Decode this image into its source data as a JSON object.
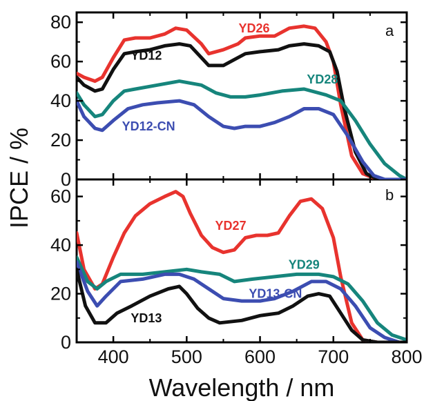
{
  "chart_data": {
    "type": "line",
    "xlabel": "Wavelength / nm",
    "ylabel": "IPCE / %",
    "xlim": [
      350,
      800
    ],
    "x_ticks": [
      "400",
      "500",
      "600",
      "700",
      "800"
    ],
    "grid": false,
    "panels": [
      {
        "label": "a",
        "ylim": [
          0,
          85
        ],
        "y_ticks": [
          "0",
          "20",
          "40",
          "60",
          "80"
        ],
        "series": [
          {
            "name": "YD26",
            "color": "#e8332e",
            "points": [
              [
                350,
                54
              ],
              [
                360,
                52
              ],
              [
                375,
                50
              ],
              [
                385,
                52
              ],
              [
                400,
                62
              ],
              [
                415,
                71
              ],
              [
                430,
                72
              ],
              [
                450,
                72
              ],
              [
                470,
                74
              ],
              [
                485,
                77
              ],
              [
                500,
                76
              ],
              [
                520,
                69
              ],
              [
                530,
                64
              ],
              [
                550,
                66
              ],
              [
                570,
                69
              ],
              [
                580,
                72
              ],
              [
                600,
                73
              ],
              [
                620,
                73
              ],
              [
                640,
                77
              ],
              [
                660,
                78
              ],
              [
                675,
                77
              ],
              [
                690,
                70
              ],
              [
                700,
                60
              ],
              [
                710,
                38
              ],
              [
                725,
                12
              ],
              [
                740,
                3
              ],
              [
                760,
                0
              ],
              [
                800,
                0
              ]
            ]
          },
          {
            "name": "YD12",
            "color": "#111111",
            "points": [
              [
                350,
                52
              ],
              [
                360,
                48
              ],
              [
                375,
                45
              ],
              [
                385,
                46
              ],
              [
                400,
                56
              ],
              [
                415,
                64
              ],
              [
                430,
                65
              ],
              [
                450,
                66
              ],
              [
                470,
                68
              ],
              [
                490,
                69
              ],
              [
                505,
                68
              ],
              [
                520,
                62
              ],
              [
                530,
                58
              ],
              [
                550,
                58
              ],
              [
                565,
                61
              ],
              [
                580,
                64
              ],
              [
                600,
                65
              ],
              [
                625,
                66
              ],
              [
                640,
                68
              ],
              [
                660,
                69
              ],
              [
                680,
                68
              ],
              [
                695,
                65
              ],
              [
                705,
                55
              ],
              [
                715,
                36
              ],
              [
                730,
                14
              ],
              [
                745,
                3
              ],
              [
                760,
                0
              ],
              [
                800,
                0
              ]
            ]
          },
          {
            "name": "YD28",
            "color": "#16857c",
            "points": [
              [
                350,
                44
              ],
              [
                360,
                38
              ],
              [
                375,
                32
              ],
              [
                385,
                33
              ],
              [
                400,
                40
              ],
              [
                415,
                45
              ],
              [
                430,
                46
              ],
              [
                460,
                48
              ],
              [
                490,
                50
              ],
              [
                520,
                48
              ],
              [
                540,
                44
              ],
              [
                560,
                42
              ],
              [
                580,
                42
              ],
              [
                600,
                43
              ],
              [
                630,
                45
              ],
              [
                660,
                46
              ],
              [
                690,
                43
              ],
              [
                710,
                40
              ],
              [
                730,
                30
              ],
              [
                750,
                18
              ],
              [
                770,
                8
              ],
              [
                790,
                2
              ],
              [
                800,
                0
              ]
            ]
          },
          {
            "name": "YD12-CN",
            "color": "#3c4db1",
            "points": [
              [
                350,
                40
              ],
              [
                360,
                32
              ],
              [
                375,
                26
              ],
              [
                385,
                25
              ],
              [
                400,
                30
              ],
              [
                420,
                36
              ],
              [
                440,
                38
              ],
              [
                460,
                39
              ],
              [
                490,
                40
              ],
              [
                510,
                38
              ],
              [
                530,
                32
              ],
              [
                550,
                27
              ],
              [
                565,
                26
              ],
              [
                580,
                27
              ],
              [
                600,
                27
              ],
              [
                620,
                29
              ],
              [
                640,
                32
              ],
              [
                660,
                36
              ],
              [
                680,
                36
              ],
              [
                700,
                33
              ],
              [
                720,
                22
              ],
              [
                740,
                9
              ],
              [
                755,
                2
              ],
              [
                770,
                0
              ],
              [
                800,
                0
              ]
            ]
          }
        ],
        "series_labels": [
          {
            "text": "YD26",
            "x": 592,
            "y": 77
          },
          {
            "text": "YD12",
            "x": 445,
            "y": 63
          },
          {
            "text": "YD28",
            "x": 685,
            "y": 51
          },
          {
            "text": "YD12-CN",
            "x": 448,
            "y": 27
          }
        ]
      },
      {
        "label": "b",
        "ylim": [
          0,
          67
        ],
        "y_ticks": [
          "0",
          "20",
          "40",
          "60"
        ],
        "series": [
          {
            "name": "YD27",
            "color": "#e8332e",
            "points": [
              [
                350,
                45
              ],
              [
                360,
                30
              ],
              [
                375,
                22
              ],
              [
                385,
                24
              ],
              [
                400,
                35
              ],
              [
                415,
                45
              ],
              [
                430,
                52
              ],
              [
                450,
                57
              ],
              [
                470,
                60
              ],
              [
                485,
                62
              ],
              [
                495,
                60
              ],
              [
                505,
                53
              ],
              [
                520,
                44
              ],
              [
                535,
                39
              ],
              [
                550,
                37
              ],
              [
                565,
                38
              ],
              [
                580,
                43
              ],
              [
                595,
                44
              ],
              [
                610,
                44
              ],
              [
                625,
                45
              ],
              [
                640,
                52
              ],
              [
                655,
                58
              ],
              [
                670,
                59
              ],
              [
                685,
                55
              ],
              [
                700,
                43
              ],
              [
                710,
                27
              ],
              [
                725,
                8
              ],
              [
                740,
                1
              ],
              [
                760,
                0
              ],
              [
                800,
                0
              ]
            ]
          },
          {
            "name": "YD29",
            "color": "#16857c",
            "points": [
              [
                350,
                35
              ],
              [
                365,
                25
              ],
              [
                378,
                22
              ],
              [
                390,
                25
              ],
              [
                410,
                28
              ],
              [
                440,
                28
              ],
              [
                470,
                29
              ],
              [
                500,
                30
              ],
              [
                520,
                29
              ],
              [
                545,
                28
              ],
              [
                565,
                25
              ],
              [
                590,
                26
              ],
              [
                620,
                27
              ],
              [
                650,
                28
              ],
              [
                680,
                28
              ],
              [
                700,
                27
              ],
              [
                720,
                24
              ],
              [
                740,
                17
              ],
              [
                760,
                8
              ],
              [
                780,
                3
              ],
              [
                800,
                1
              ]
            ]
          },
          {
            "name": "YD13-CN",
            "color": "#3c4db1",
            "points": [
              [
                350,
                33
              ],
              [
                365,
                21
              ],
              [
                378,
                15
              ],
              [
                390,
                19
              ],
              [
                410,
                25
              ],
              [
                440,
                26
              ],
              [
                470,
                28
              ],
              [
                490,
                28
              ],
              [
                510,
                26
              ],
              [
                530,
                22
              ],
              [
                550,
                18
              ],
              [
                575,
                17
              ],
              [
                600,
                17
              ],
              [
                620,
                18
              ],
              [
                645,
                21
              ],
              [
                670,
                25
              ],
              [
                690,
                25
              ],
              [
                710,
                22
              ],
              [
                730,
                15
              ],
              [
                750,
                6
              ],
              [
                770,
                2
              ],
              [
                790,
                0
              ],
              [
                800,
                0
              ]
            ]
          },
          {
            "name": "YD13",
            "color": "#111111",
            "points": [
              [
                350,
                30
              ],
              [
                362,
                15
              ],
              [
                375,
                8
              ],
              [
                390,
                8
              ],
              [
                405,
                12
              ],
              [
                425,
                15
              ],
              [
                450,
                19
              ],
              [
                475,
                22
              ],
              [
                490,
                23
              ],
              [
                500,
                20
              ],
              [
                515,
                14
              ],
              [
                530,
                10
              ],
              [
                545,
                8
              ],
              [
                575,
                9
              ],
              [
                600,
                11
              ],
              [
                625,
                12
              ],
              [
                645,
                15
              ],
              [
                665,
                19
              ],
              [
                680,
                20
              ],
              [
                695,
                19
              ],
              [
                710,
                12
              ],
              [
                725,
                5
              ],
              [
                740,
                1
              ],
              [
                760,
                0
              ],
              [
                800,
                0
              ]
            ]
          }
        ],
        "series_labels": [
          {
            "text": "YD27",
            "x": 560,
            "y": 48
          },
          {
            "text": "YD29",
            "x": 660,
            "y": 32
          },
          {
            "text": "YD13-CN",
            "x": 621,
            "y": 20
          },
          {
            "text": "YD13",
            "x": 445,
            "y": 10
          }
        ]
      }
    ]
  }
}
